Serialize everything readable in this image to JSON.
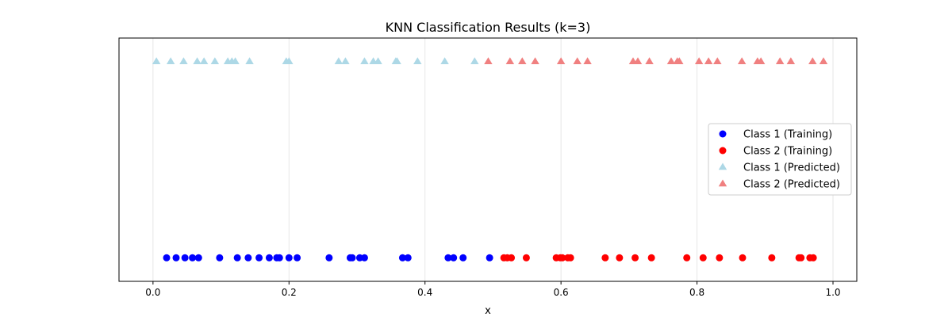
{
  "chart_data": {
    "type": "scatter",
    "title": "KNN Classification Results (k=3)",
    "xlabel": "x",
    "ylabel": "",
    "xlim": [
      -0.05,
      1.035
    ],
    "ylim": [
      -0.12,
      1.12
    ],
    "x_ticks": [
      0.0,
      0.2,
      0.4,
      0.6,
      0.8,
      1.0
    ],
    "x_tick_labels": [
      "0.0",
      "0.2",
      "0.4",
      "0.6",
      "0.8",
      "1.0"
    ],
    "y_ticks_visible": false,
    "grid": "x-axis vertical lines",
    "legend_position": "center-right",
    "series": [
      {
        "name": "Class 1 (Training)",
        "marker": "circle",
        "color": "#0000ff",
        "y": 0,
        "x": [
          0.02,
          0.034,
          0.047,
          0.058,
          0.067,
          0.098,
          0.124,
          0.14,
          0.156,
          0.171,
          0.182,
          0.186,
          0.2,
          0.212,
          0.259,
          0.29,
          0.293,
          0.304,
          0.311,
          0.367,
          0.375,
          0.434,
          0.442,
          0.456,
          0.495
        ]
      },
      {
        "name": "Class 2 (Training)",
        "marker": "circle",
        "color": "#ff0000",
        "y": 0,
        "x": [
          0.516,
          0.521,
          0.527,
          0.549,
          0.593,
          0.599,
          0.602,
          0.61,
          0.614,
          0.665,
          0.686,
          0.709,
          0.733,
          0.785,
          0.809,
          0.833,
          0.867,
          0.91,
          0.95,
          0.953,
          0.966,
          0.971
        ]
      },
      {
        "name": "Class 1 (Predicted)",
        "marker": "triangle",
        "color": "#add8e6",
        "y": 1,
        "x": [
          0.005,
          0.026,
          0.045,
          0.065,
          0.075,
          0.091,
          0.11,
          0.116,
          0.121,
          0.142,
          0.196,
          0.2,
          0.273,
          0.283,
          0.311,
          0.324,
          0.331,
          0.357,
          0.359,
          0.389,
          0.429,
          0.473
        ]
      },
      {
        "name": "Class 2 (Predicted)",
        "marker": "triangle",
        "color": "#f08080",
        "y": 1,
        "x": [
          0.493,
          0.525,
          0.543,
          0.562,
          0.6,
          0.624,
          0.639,
          0.706,
          0.713,
          0.73,
          0.762,
          0.771,
          0.774,
          0.803,
          0.817,
          0.83,
          0.866,
          0.889,
          0.894,
          0.922,
          0.938,
          0.97,
          0.986
        ]
      }
    ]
  }
}
